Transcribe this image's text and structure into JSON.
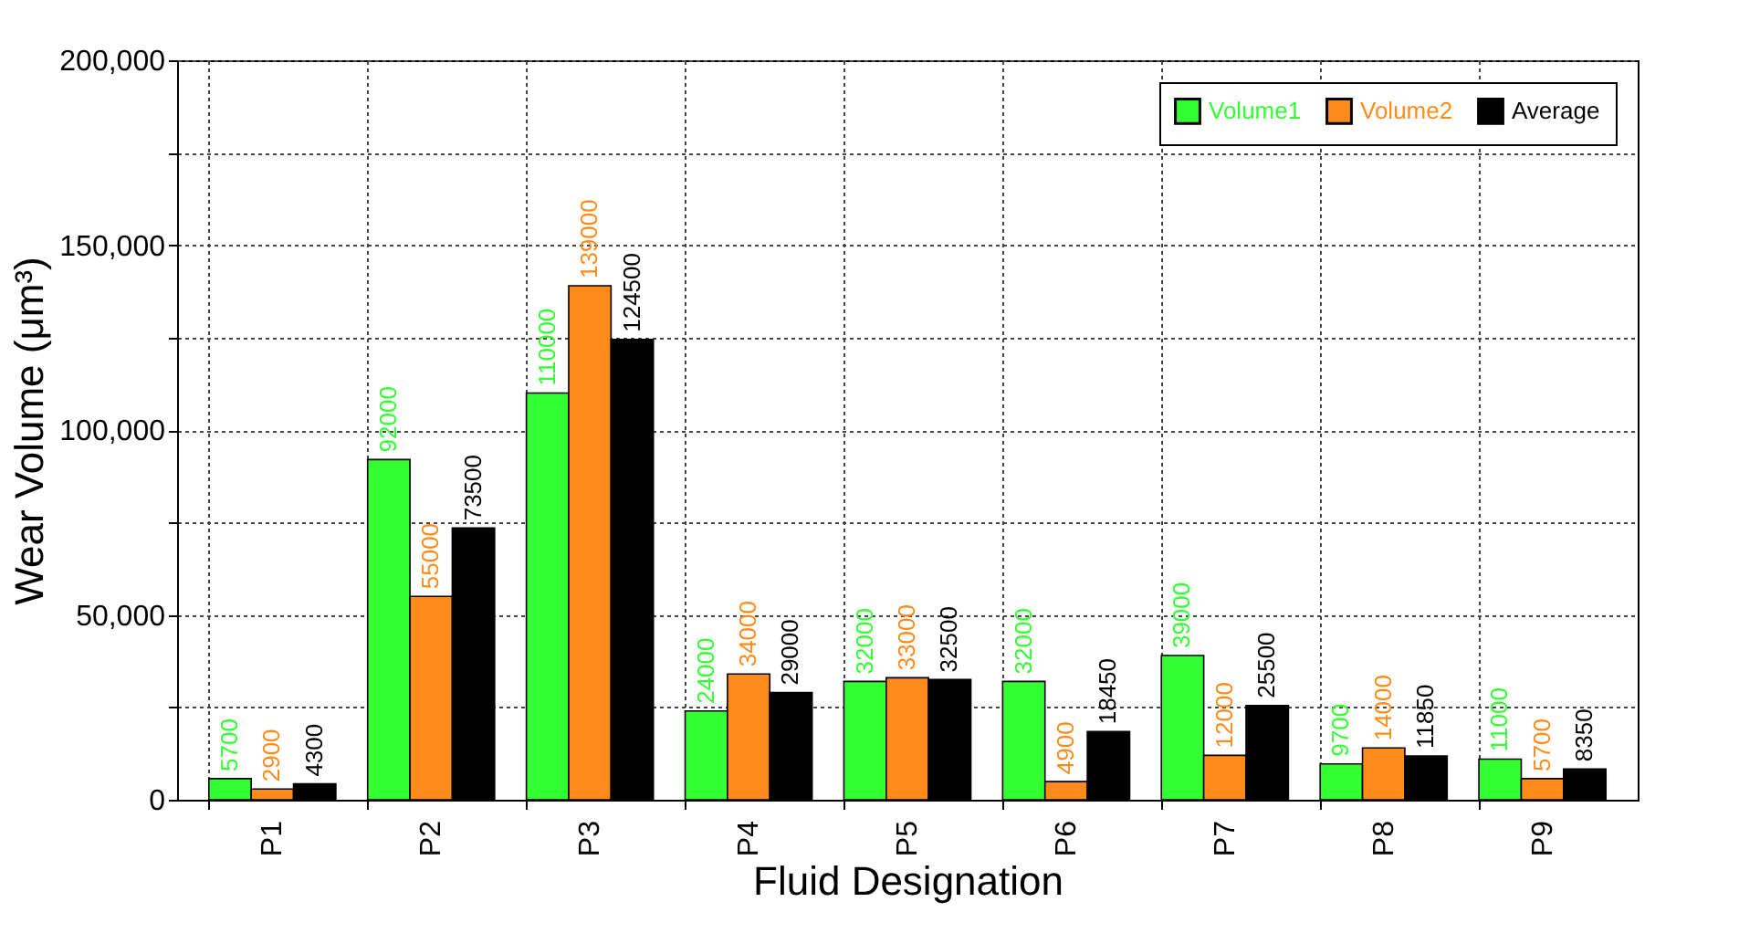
{
  "chart_data": {
    "type": "bar",
    "xlabel": "Fluid Designation",
    "ylabel": "Wear Volume (μm³)",
    "categories": [
      "P1",
      "P2",
      "P3",
      "P4",
      "P5",
      "P6",
      "P7",
      "P8",
      "P9"
    ],
    "series": [
      {
        "name": "Volume1",
        "color": "#33ff33",
        "values": [
          5700,
          92000,
          110000,
          24000,
          32000,
          32000,
          39000,
          9700,
          11000
        ]
      },
      {
        "name": "Volume2",
        "color": "#ff8c1a",
        "values": [
          2900,
          55000,
          139000,
          34000,
          33000,
          4900,
          12000,
          14000,
          5700
        ]
      },
      {
        "name": "Average",
        "color": "#000000",
        "values": [
          4300,
          73500,
          124500,
          29000,
          32500,
          18450,
          25500,
          11850,
          8350
        ]
      }
    ],
    "ylim": [
      0,
      200000
    ],
    "yticks": [
      {
        "value": 0,
        "label": "0"
      },
      {
        "value": 25000,
        "label": null
      },
      {
        "value": 50000,
        "label": "50,000"
      },
      {
        "value": 75000,
        "label": null
      },
      {
        "value": 100000,
        "label": "100,000"
      },
      {
        "value": 125000,
        "label": null
      },
      {
        "value": 150000,
        "label": "150,000"
      },
      {
        "value": 175000,
        "label": null
      },
      {
        "value": 200000,
        "label": "200,000"
      }
    ],
    "grid": true,
    "legend": "top right",
    "data_labels": true
  }
}
